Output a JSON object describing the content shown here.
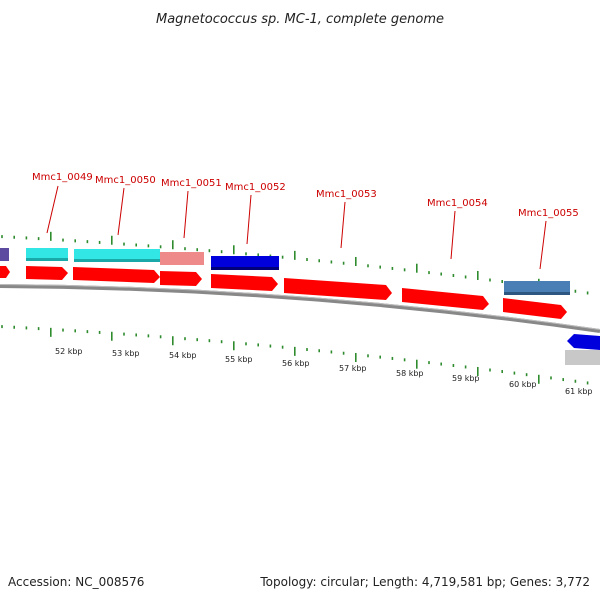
{
  "title": "Magnetococcus sp. MC-1, complete genome",
  "accession": "Accession: NC_008576",
  "summary": "Topology: circular; Length: 4,719,581 bp; Genes: 3,772",
  "gene_labels": [
    "Mmc1_0049",
    "Mmc1_0050",
    "Mmc1_0051",
    "Mmc1_0052",
    "Mmc1_0053",
    "Mmc1_0054",
    "Mmc1_0055"
  ],
  "kbp_labels": [
    "52 kbp",
    "53 kbp",
    "54 kbp",
    "55 kbp",
    "56 kbp",
    "57 kbp",
    "58 kbp",
    "59 kbp",
    "60 kbp",
    "61 kbp"
  ],
  "colors": {
    "cds": "#ff0000",
    "tick": "#2e8b2e",
    "label": "#cc0000",
    "cyan": "#33e6e6",
    "pink": "#ee8a8a",
    "blue": "#0000dd",
    "steel": "#4a7fb5",
    "grey": "#c8c8c8",
    "backbone": "#888888"
  }
}
